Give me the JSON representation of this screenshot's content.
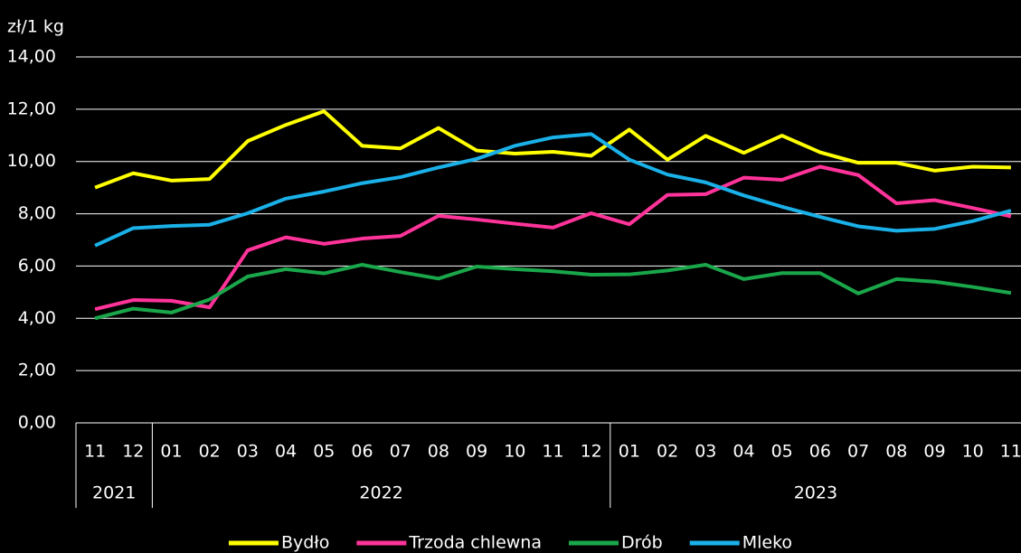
{
  "chart_data": {
    "type": "line",
    "y_axis_label": "zł/1 kg",
    "categories": [
      "11",
      "12",
      "01",
      "02",
      "03",
      "04",
      "05",
      "06",
      "07",
      "08",
      "09",
      "10",
      "11",
      "12",
      "01",
      "02",
      "03",
      "04",
      "05",
      "06",
      "07",
      "08",
      "09",
      "10",
      "11"
    ],
    "x_groups": [
      "2021",
      "2022",
      "2023"
    ],
    "ylim": [
      0,
      14
    ],
    "yticks": [
      {
        "value": 0,
        "label": "0,00"
      },
      {
        "value": 2,
        "label": "2,00"
      },
      {
        "value": 4,
        "label": "4,00"
      },
      {
        "value": 6,
        "label": "6,00"
      },
      {
        "value": 8,
        "label": "8,00"
      },
      {
        "value": 10,
        "label": "10,00"
      },
      {
        "value": 12,
        "label": "12,00"
      },
      {
        "value": 14,
        "label": "14,00"
      }
    ],
    "grid": true,
    "legend": "bottom",
    "series": [
      {
        "name": "Bydło",
        "color": "#ffff00",
        "values": [
          9.0,
          9.55,
          9.27,
          9.33,
          10.78,
          11.4,
          11.92,
          10.6,
          10.5,
          11.28,
          10.42,
          10.3,
          10.37,
          10.22,
          11.22,
          10.07,
          10.98,
          10.33,
          10.99,
          10.35,
          9.95,
          9.95,
          9.65,
          9.8,
          9.77
        ]
      },
      {
        "name": "Trzoda chlewna",
        "color": "#ff3399",
        "values": [
          4.35,
          4.7,
          4.67,
          4.42,
          6.6,
          7.1,
          6.85,
          7.05,
          7.15,
          7.92,
          7.78,
          7.62,
          7.47,
          8.02,
          7.6,
          8.72,
          8.75,
          9.38,
          9.3,
          9.8,
          9.48,
          8.4,
          8.52,
          8.22,
          7.9
        ]
      },
      {
        "name": "Drób",
        "color": "#1aa64a",
        "values": [
          4.0,
          4.37,
          4.22,
          4.72,
          5.6,
          5.88,
          5.72,
          6.05,
          5.77,
          5.52,
          5.98,
          5.88,
          5.8,
          5.67,
          5.68,
          5.83,
          6.05,
          5.5,
          5.73,
          5.73,
          4.95,
          5.5,
          5.4,
          5.2,
          4.97
        ]
      },
      {
        "name": "Mleko",
        "color": "#1ab0e8",
        "values": [
          6.78,
          7.45,
          7.53,
          7.58,
          8.02,
          8.58,
          8.85,
          9.17,
          9.4,
          9.77,
          10.1,
          10.6,
          10.92,
          11.05,
          10.07,
          9.5,
          9.2,
          8.7,
          8.27,
          7.88,
          7.52,
          7.35,
          7.42,
          7.72,
          8.12
        ]
      }
    ]
  }
}
